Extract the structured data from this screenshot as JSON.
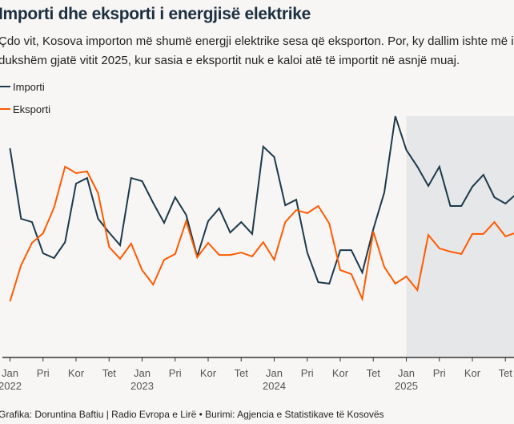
{
  "title": "Importi dhe eksporti i energjisë elektrike",
  "subtitle_lines": [
    "Çdo vit, Kosova importon më shumë energji elektrike sesa që eksporton. Por, ky dallim ishte më i",
    "dukshëm gjatë vitit 2025, kur sasia e eksportit nuk e kaloi atë të importit në asnjë muaj."
  ],
  "legend": [
    {
      "label": "Importi",
      "color": "#1b3a4b"
    },
    {
      "label": "Eksporti",
      "color": "#ff5a00"
    }
  ],
  "footer": "Grafika: Doruntina Baftiu | Radio Evropa e Lirë • Burimi: Agjencia e Statistikave të Kosovës",
  "chart_data": {
    "type": "line",
    "title": "Importi dhe eksporti i energjisë elektrike",
    "xlabel": "",
    "ylabel": "",
    "y_unit_note": "No y-axis shown; values are relative index (0 = axis baseline, 100 = peak import Dec 2024)",
    "ylim": [
      0,
      100
    ],
    "grid": false,
    "legend_position": "top-left",
    "x_start": "2022-01",
    "x_end": "2025-11",
    "x_ticks": [
      {
        "month": 0,
        "label": "Jan",
        "year": "2022"
      },
      {
        "month": 3,
        "label": "Pri",
        "year": ""
      },
      {
        "month": 6,
        "label": "Kor",
        "year": ""
      },
      {
        "month": 9,
        "label": "Tet",
        "year": ""
      },
      {
        "month": 12,
        "label": "Jan",
        "year": "2023"
      },
      {
        "month": 15,
        "label": "Pri",
        "year": ""
      },
      {
        "month": 18,
        "label": "Kor",
        "year": ""
      },
      {
        "month": 21,
        "label": "Tet",
        "year": ""
      },
      {
        "month": 24,
        "label": "Jan",
        "year": "2024"
      },
      {
        "month": 27,
        "label": "Pri",
        "year": ""
      },
      {
        "month": 30,
        "label": "Kor",
        "year": ""
      },
      {
        "month": 33,
        "label": "Tet",
        "year": ""
      },
      {
        "month": 36,
        "label": "Jan",
        "year": "2025"
      },
      {
        "month": 39,
        "label": "Pri",
        "year": ""
      },
      {
        "month": 42,
        "label": "Kor",
        "year": ""
      },
      {
        "month": 45,
        "label": "Tet",
        "year": ""
      }
    ],
    "highlight_range": {
      "from_month": 36,
      "to_month": 46,
      "label": "2025",
      "color": "#e6e7e9"
    },
    "series": [
      {
        "name": "Importi",
        "color": "#1b3a4b",
        "values": [
          86.7,
          57.5,
          56.1,
          43.2,
          41.2,
          47.8,
          72.1,
          74.4,
          57.5,
          51.8,
          46.5,
          74.4,
          73.1,
          64.1,
          55.8,
          66.4,
          59.1,
          41.9,
          56.5,
          61.8,
          51.8,
          56.1,
          51.2,
          87.4,
          83.1,
          63.1,
          65.4,
          43.5,
          31.2,
          30.6,
          44.5,
          44.5,
          35.2,
          53.2,
          68.4,
          100.0,
          86.0,
          79.1,
          71.1,
          79.1,
          62.8,
          62.8,
          70.8,
          75.7,
          66.4,
          63.8,
          67.8
        ]
      },
      {
        "name": "Eksporti",
        "color": "#ff5a00",
        "values": [
          23.3,
          38.2,
          47.5,
          51.5,
          62.1,
          79.1,
          76.4,
          77.1,
          68.1,
          45.8,
          40.9,
          47.2,
          36.2,
          30.2,
          40.5,
          42.9,
          56.5,
          41.5,
          47.5,
          42.5,
          42.5,
          43.5,
          41.9,
          47.8,
          40.5,
          56.1,
          61.1,
          59.8,
          62.8,
          55.5,
          36.2,
          34.6,
          24.3,
          52.2,
          37.5,
          30.6,
          33.6,
          27.9,
          50.8,
          45.2,
          43.9,
          42.9,
          51.2,
          51.2,
          56.1,
          50.2,
          51.8
        ]
      }
    ]
  }
}
